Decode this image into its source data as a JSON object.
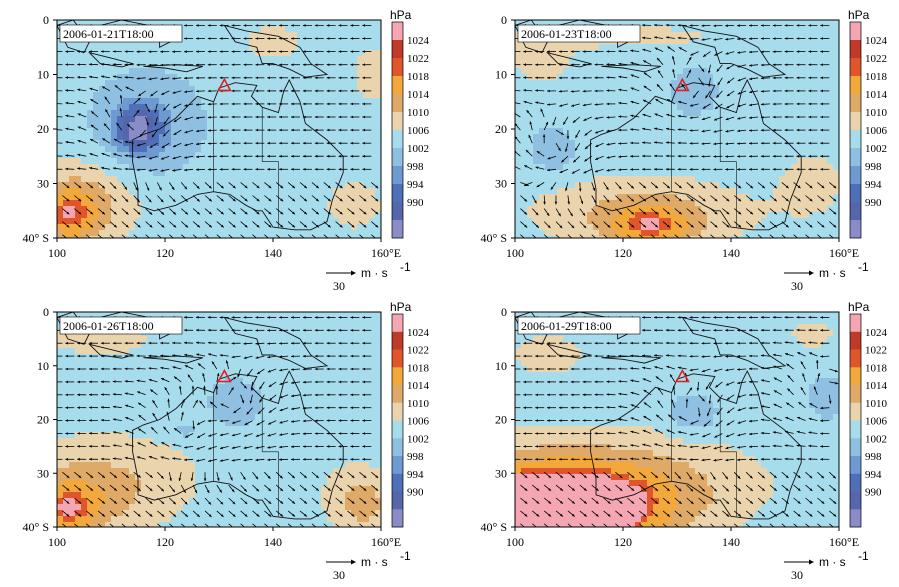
{
  "chart_data": [
    {
      "type": "heatmap",
      "timestamp": "2006-01-21T18:00",
      "x_ticks": [
        "100",
        "120",
        "140",
        "160°E"
      ],
      "y_ticks": [
        "0",
        "10",
        "20",
        "30",
        "40° S"
      ],
      "xlim": [
        100,
        160
      ],
      "ylim_lat_south": [
        0,
        40
      ],
      "colorbar": {
        "unit": "hPa",
        "levels": [
          "1024",
          "1022",
          "1018",
          "1014",
          "1010",
          "1006",
          "1002",
          "998",
          "994",
          "990"
        ]
      },
      "wind_ref": {
        "speed": "30",
        "unit": "m · s",
        "exp": "-1"
      },
      "marker": {
        "lon": 131,
        "lat": 12,
        "symbol": "triangle"
      },
      "field": {
        "background": 1008,
        "features": [
          {
            "lon": 115,
            "lat": 20,
            "value": 993,
            "rx": 4,
            "ry": 4
          },
          {
            "lon": 116,
            "lat": 20,
            "value": 1002,
            "rx": 9,
            "ry": 9
          },
          {
            "lon": 118,
            "lat": 18,
            "value": 1006,
            "rx": 15,
            "ry": 13
          },
          {
            "lon": 102,
            "lat": 36,
            "value": 1018,
            "rx": 6,
            "ry": 5
          },
          {
            "lon": 104,
            "lat": 34,
            "value": 1014,
            "rx": 10,
            "ry": 8
          },
          {
            "lon": 107,
            "lat": 32,
            "value": 1010,
            "rx": 15,
            "ry": 9
          },
          {
            "lon": 155,
            "lat": 34,
            "value": 1011,
            "rx": 8,
            "ry": 7
          },
          {
            "lon": 140,
            "lat": 4,
            "value": 1011,
            "rx": 8,
            "ry": 5
          },
          {
            "lon": 158,
            "lat": 10,
            "value": 1011,
            "rx": 5,
            "ry": 8
          }
        ]
      }
    },
    {
      "type": "heatmap",
      "timestamp": "2006-01-23T18:00",
      "x_ticks": [
        "100",
        "120",
        "140",
        "160°E"
      ],
      "y_ticks": [
        "0",
        "10",
        "20",
        "30",
        "40° S"
      ],
      "xlim": [
        100,
        160
      ],
      "ylim_lat_south": [
        0,
        40
      ],
      "colorbar": {
        "unit": "hPa",
        "levels": [
          "1024",
          "1022",
          "1018",
          "1014",
          "1010",
          "1006",
          "1002",
          "998",
          "994",
          "990"
        ]
      },
      "wind_ref": {
        "speed": "30",
        "unit": "m · s",
        "exp": "-1"
      },
      "marker": {
        "lon": 131,
        "lat": 12,
        "symbol": "triangle"
      },
      "field": {
        "background": 1008,
        "features": [
          {
            "lon": 133,
            "lat": 13,
            "value": 1003,
            "rx": 5,
            "ry": 5
          },
          {
            "lon": 107,
            "lat": 24,
            "value": 1003,
            "rx": 5,
            "ry": 5
          },
          {
            "lon": 125,
            "lat": 38,
            "value": 1018,
            "rx": 8,
            "ry": 4
          },
          {
            "lon": 125,
            "lat": 36,
            "value": 1014,
            "rx": 18,
            "ry": 6
          },
          {
            "lon": 120,
            "lat": 34,
            "value": 1010,
            "rx": 25,
            "ry": 9
          },
          {
            "lon": 155,
            "lat": 30,
            "value": 1011,
            "rx": 8,
            "ry": 8
          },
          {
            "lon": 105,
            "lat": 8,
            "value": 1011,
            "rx": 8,
            "ry": 6
          },
          {
            "lon": 120,
            "lat": 3,
            "value": 1011,
            "rx": 25,
            "ry": 3
          }
        ]
      }
    },
    {
      "type": "heatmap",
      "timestamp": "2006-01-26T18:00",
      "x_ticks": [
        "100",
        "120",
        "140",
        "160°E"
      ],
      "y_ticks": [
        "0",
        "10",
        "20",
        "30",
        "40° S"
      ],
      "xlim": [
        100,
        160
      ],
      "ylim_lat_south": [
        0,
        40
      ],
      "colorbar": {
        "unit": "hPa",
        "levels": [
          "1024",
          "1022",
          "1018",
          "1014",
          "1010",
          "1006",
          "1002",
          "998",
          "994",
          "990"
        ]
      },
      "wind_ref": {
        "speed": "30",
        "unit": "m · s",
        "exp": "-1"
      },
      "marker": {
        "lon": 131,
        "lat": 12,
        "symbol": "triangle"
      },
      "field": {
        "background": 1008,
        "features": [
          {
            "lon": 133,
            "lat": 17,
            "value": 1003,
            "rx": 6,
            "ry": 5
          },
          {
            "lon": 124,
            "lat": 22,
            "value": 1004,
            "rx": 3,
            "ry": 2
          },
          {
            "lon": 102,
            "lat": 37,
            "value": 1019,
            "rx": 6,
            "ry": 5
          },
          {
            "lon": 106,
            "lat": 34,
            "value": 1014,
            "rx": 14,
            "ry": 8
          },
          {
            "lon": 110,
            "lat": 30,
            "value": 1011,
            "rx": 22,
            "ry": 10
          },
          {
            "lon": 157,
            "lat": 36,
            "value": 1014,
            "rx": 5,
            "ry": 5
          },
          {
            "lon": 155,
            "lat": 34,
            "value": 1011,
            "rx": 9,
            "ry": 9
          },
          {
            "lon": 108,
            "lat": 5,
            "value": 1011,
            "rx": 14,
            "ry": 5
          }
        ]
      }
    },
    {
      "type": "heatmap",
      "timestamp": "2006-01-29T18:00",
      "x_ticks": [
        "100",
        "120",
        "140",
        "160°E"
      ],
      "y_ticks": [
        "0",
        "10",
        "20",
        "30",
        "40° S"
      ],
      "xlim": [
        100,
        160
      ],
      "ylim_lat_south": [
        0,
        40
      ],
      "colorbar": {
        "unit": "hPa",
        "levels": [
          "1024",
          "1022",
          "1018",
          "1014",
          "1010",
          "1006",
          "1002",
          "998",
          "994",
          "990"
        ]
      },
      "wind_ref": {
        "speed": "30",
        "unit": "m · s",
        "exp": "-1"
      },
      "marker": {
        "lon": 131,
        "lat": 12,
        "symbol": "triangle"
      },
      "field": {
        "background": 1008,
        "features": [
          {
            "lon": 133,
            "lat": 19,
            "value": 1002,
            "rx": 5,
            "ry": 4
          },
          {
            "lon": 158,
            "lat": 16,
            "value": 1002,
            "rx": 4,
            "ry": 4
          },
          {
            "lon": 104,
            "lat": 40,
            "value": 1027,
            "rx": 18,
            "ry": 7
          },
          {
            "lon": 108,
            "lat": 36,
            "value": 1021,
            "rx": 22,
            "ry": 8
          },
          {
            "lon": 112,
            "lat": 33,
            "value": 1015,
            "rx": 28,
            "ry": 9
          },
          {
            "lon": 115,
            "lat": 30,
            "value": 1011,
            "rx": 32,
            "ry": 10
          },
          {
            "lon": 106,
            "lat": 8,
            "value": 1011,
            "rx": 10,
            "ry": 6
          },
          {
            "lon": 155,
            "lat": 4,
            "value": 1011,
            "rx": 6,
            "ry": 4
          }
        ]
      }
    }
  ],
  "colors": {
    "levels": [
      {
        "max": 990,
        "color": "#8a8cc8"
      },
      {
        "max": 994,
        "color": "#5566aa"
      },
      {
        "max": 998,
        "color": "#4f6fb8"
      },
      {
        "max": 1002,
        "color": "#6e9ad2"
      },
      {
        "max": 1006,
        "color": "#8fc0e2"
      },
      {
        "max": 1010,
        "color": "#a6dcec"
      },
      {
        "max": 1014,
        "color": "#ead4ad"
      },
      {
        "max": 1018,
        "color": "#dfa968"
      },
      {
        "max": 1022,
        "color": "#f2a83a"
      },
      {
        "max": 1024,
        "color": "#e0562a"
      },
      {
        "max": 9999,
        "color": "#f4a6b3"
      }
    ],
    "colorbar_swatches": [
      "#f4a6b3",
      "#c03a2a",
      "#e0562a",
      "#f2a83a",
      "#dfa968",
      "#ead4ad",
      "#a6dcec",
      "#8fc0e2",
      "#6e9ad2",
      "#4f6fb8",
      "#5566aa",
      "#8a8cc8"
    ]
  }
}
